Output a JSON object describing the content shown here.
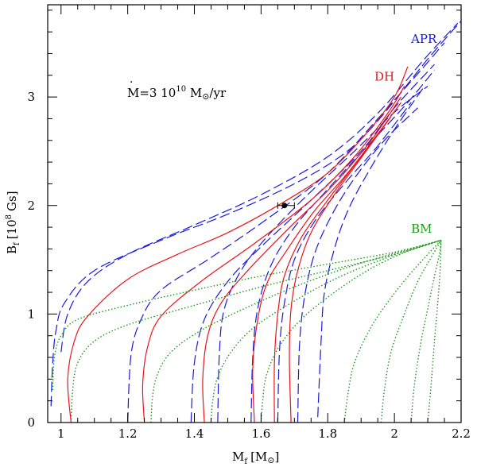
{
  "chart_data": {
    "type": "line",
    "title": "",
    "xlabel": "M_f [M⊙]",
    "xlabel_main": "M",
    "xlabel_sub": "f",
    "xlabel_unit": "[M",
    "xlabel_close": "]",
    "ylabel": "B_f [10^8 Gs]",
    "ylabel_main": "B",
    "ylabel_sub": "f",
    "ylabel_unit_open": "[10",
    "ylabel_unit_exp": "8",
    "ylabel_unit_close": "Gs]",
    "xlim": [
      0.96,
      2.2
    ],
    "ylim": [
      0,
      3.85
    ],
    "xticks": [
      1.0,
      1.2,
      1.4,
      1.6,
      1.8,
      2.0,
      2.2
    ],
    "xtick_labels": [
      "1",
      "1.2",
      "1.4",
      "1.6",
      "1.8",
      "2",
      "2.2"
    ],
    "yticks": [
      0,
      1,
      2,
      3
    ],
    "ytick_labels": [
      "0",
      "1",
      "2",
      "3"
    ],
    "annotation": {
      "prefix": "M",
      "mid": "=3 10",
      "exp": "10",
      "unit": " M",
      "suffix": "/yr"
    },
    "series_labels": [
      {
        "name": "APR",
        "color": "#1a1adb",
        "x": 2.05,
        "y": 3.5
      },
      {
        "name": "DH",
        "color": "#e8141b",
        "x": 1.94,
        "y": 3.15
      },
      {
        "name": "BM",
        "color": "#1a9a1a",
        "x": 2.05,
        "y": 1.75
      }
    ],
    "series": [
      {
        "name": "APR",
        "color": "#1a1adb",
        "style": "dashed",
        "curves": [
          [
            [
              0.97,
              0.15
            ],
            [
              0.975,
              0.55
            ],
            [
              0.985,
              0.85
            ],
            [
              1.01,
              1.1
            ],
            [
              1.1,
              1.4
            ],
            [
              1.3,
              1.68
            ],
            [
              1.5,
              1.92
            ],
            [
              1.7,
              2.2
            ],
            [
              1.85,
              2.48
            ],
            [
              1.95,
              2.78
            ],
            [
              2.1,
              3.35
            ],
            [
              2.2,
              3.7
            ]
          ],
          [
            [
              1.0,
              0.65
            ],
            [
              1.02,
              1.0
            ],
            [
              1.08,
              1.3
            ],
            [
              1.2,
              1.55
            ],
            [
              1.4,
              1.82
            ],
            [
              1.6,
              2.1
            ],
            [
              1.8,
              2.45
            ],
            [
              1.95,
              2.85
            ],
            [
              2.09,
              3.35
            ],
            [
              2.19,
              3.68
            ]
          ],
          [
            [
              1.2,
              0.0
            ],
            [
              1.21,
              0.62
            ],
            [
              1.24,
              0.95
            ],
            [
              1.3,
              1.22
            ],
            [
              1.45,
              1.52
            ],
            [
              1.62,
              1.88
            ],
            [
              1.8,
              2.3
            ],
            [
              1.95,
              2.8
            ],
            [
              2.08,
              3.25
            ],
            [
              2.15,
              3.5
            ]
          ],
          [
            [
              1.39,
              0.0
            ],
            [
              1.4,
              0.55
            ],
            [
              1.43,
              0.95
            ],
            [
              1.5,
              1.3
            ],
            [
              1.6,
              1.62
            ],
            [
              1.75,
              2.05
            ],
            [
              1.9,
              2.5
            ],
            [
              2.0,
              2.9
            ],
            [
              2.12,
              3.3
            ]
          ],
          [
            [
              1.47,
              0.0
            ],
            [
              1.475,
              0.65
            ],
            [
              1.49,
              1.05
            ],
            [
              1.54,
              1.4
            ],
            [
              1.62,
              1.72
            ],
            [
              1.74,
              2.1
            ],
            [
              1.88,
              2.5
            ],
            [
              2.0,
              2.86
            ],
            [
              2.1,
              3.1
            ]
          ],
          [
            [
              1.57,
              0.0
            ],
            [
              1.575,
              0.6
            ],
            [
              1.59,
              1.05
            ],
            [
              1.63,
              1.45
            ],
            [
              1.7,
              1.8
            ],
            [
              1.8,
              2.15
            ],
            [
              1.92,
              2.55
            ],
            [
              2.04,
              2.95
            ],
            [
              2.12,
              3.25
            ]
          ],
          [
            [
              1.65,
              0.0
            ],
            [
              1.655,
              0.65
            ],
            [
              1.67,
              1.1
            ],
            [
              1.7,
              1.5
            ],
            [
              1.76,
              1.85
            ],
            [
              1.85,
              2.2
            ],
            [
              1.95,
              2.55
            ],
            [
              2.05,
              2.95
            ]
          ],
          [
            [
              1.71,
              0.0
            ],
            [
              1.715,
              0.7
            ],
            [
              1.73,
              1.15
            ],
            [
              1.76,
              1.55
            ],
            [
              1.81,
              1.9
            ],
            [
              1.88,
              2.25
            ],
            [
              1.97,
              2.6
            ],
            [
              2.07,
              2.9
            ]
          ],
          [
            [
              1.77,
              0.05
            ],
            [
              1.78,
              0.75
            ],
            [
              1.79,
              1.2
            ],
            [
              1.82,
              1.6
            ],
            [
              1.86,
              1.95
            ],
            [
              1.92,
              2.3
            ],
            [
              2.0,
              2.7
            ],
            [
              2.09,
              3.1
            ]
          ]
        ]
      },
      {
        "name": "DH",
        "color": "#e8141b",
        "style": "solid",
        "curves": [
          [
            [
              1.03,
              0.0
            ],
            [
              1.02,
              0.4
            ],
            [
              1.04,
              0.75
            ],
            [
              1.08,
              0.98
            ],
            [
              1.2,
              1.32
            ],
            [
              1.35,
              1.55
            ],
            [
              1.5,
              1.75
            ],
            [
              1.65,
              2.0
            ],
            [
              1.8,
              2.3
            ],
            [
              1.92,
              2.68
            ],
            [
              2.0,
              3.0
            ],
            [
              2.04,
              3.28
            ]
          ],
          [
            [
              1.25,
              0.0
            ],
            [
              1.245,
              0.35
            ],
            [
              1.26,
              0.7
            ],
            [
              1.3,
              0.98
            ],
            [
              1.42,
              1.3
            ],
            [
              1.58,
              1.65
            ],
            [
              1.75,
              2.05
            ],
            [
              1.88,
              2.45
            ],
            [
              1.98,
              2.85
            ],
            [
              2.03,
              3.1
            ]
          ],
          [
            [
              1.43,
              0.0
            ],
            [
              1.425,
              0.4
            ],
            [
              1.44,
              0.8
            ],
            [
              1.48,
              1.1
            ],
            [
              1.56,
              1.4
            ],
            [
              1.68,
              1.78
            ],
            [
              1.82,
              2.2
            ],
            [
              1.93,
              2.6
            ],
            [
              2.02,
              3.0
            ]
          ],
          [
            [
              1.58,
              0.0
            ],
            [
              1.575,
              0.5
            ],
            [
              1.59,
              0.95
            ],
            [
              1.62,
              1.3
            ],
            [
              1.68,
              1.6
            ],
            [
              1.76,
              1.95
            ],
            [
              1.86,
              2.3
            ],
            [
              1.96,
              2.7
            ],
            [
              2.02,
              2.95
            ]
          ],
          [
            [
              1.64,
              0.0
            ],
            [
              1.64,
              0.55
            ],
            [
              1.65,
              1.0
            ],
            [
              1.67,
              1.35
            ],
            [
              1.72,
              1.7
            ],
            [
              1.8,
              2.05
            ],
            [
              1.9,
              2.45
            ],
            [
              1.98,
              2.78
            ]
          ],
          [
            [
              1.69,
              0.0
            ],
            [
              1.685,
              0.6
            ],
            [
              1.69,
              1.05
            ],
            [
              1.71,
              1.4
            ],
            [
              1.75,
              1.75
            ],
            [
              1.82,
              2.1
            ],
            [
              1.91,
              2.48
            ],
            [
              1.99,
              2.82
            ]
          ]
        ]
      },
      {
        "name": "BM",
        "color": "#1a9a1a",
        "style": "dotted",
        "curves": [
          [
            [
              0.975,
              0.3
            ],
            [
              0.98,
              0.6
            ],
            [
              1.0,
              0.8
            ],
            [
              1.05,
              0.95
            ],
            [
              1.2,
              1.08
            ],
            [
              1.4,
              1.22
            ],
            [
              1.6,
              1.35
            ],
            [
              1.8,
              1.46
            ],
            [
              2.0,
              1.57
            ],
            [
              2.14,
              1.68
            ]
          ],
          [
            [
              1.03,
              0.0
            ],
            [
              1.035,
              0.3
            ],
            [
              1.05,
              0.55
            ],
            [
              1.1,
              0.75
            ],
            [
              1.2,
              0.9
            ],
            [
              1.4,
              1.08
            ],
            [
              1.6,
              1.25
            ],
            [
              1.8,
              1.4
            ],
            [
              2.0,
              1.55
            ],
            [
              2.14,
              1.68
            ]
          ],
          [
            [
              1.27,
              0.0
            ],
            [
              1.275,
              0.25
            ],
            [
              1.29,
              0.45
            ],
            [
              1.33,
              0.65
            ],
            [
              1.42,
              0.85
            ],
            [
              1.55,
              1.05
            ],
            [
              1.7,
              1.25
            ],
            [
              1.86,
              1.43
            ],
            [
              2.0,
              1.56
            ],
            [
              2.14,
              1.68
            ]
          ],
          [
            [
              1.45,
              0.0
            ],
            [
              1.455,
              0.2
            ],
            [
              1.47,
              0.42
            ],
            [
              1.51,
              0.65
            ],
            [
              1.58,
              0.88
            ],
            [
              1.7,
              1.12
            ],
            [
              1.82,
              1.32
            ],
            [
              1.96,
              1.5
            ],
            [
              2.08,
              1.62
            ],
            [
              2.14,
              1.68
            ]
          ],
          [
            [
              1.6,
              0.0
            ],
            [
              1.605,
              0.2
            ],
            [
              1.615,
              0.42
            ],
            [
              1.65,
              0.68
            ],
            [
              1.72,
              0.95
            ],
            [
              1.82,
              1.2
            ],
            [
              1.93,
              1.42
            ],
            [
              2.04,
              1.58
            ],
            [
              2.14,
              1.68
            ]
          ],
          [
            [
              1.85,
              0.0
            ],
            [
              1.86,
              0.25
            ],
            [
              1.88,
              0.55
            ],
            [
              1.93,
              0.88
            ],
            [
              1.99,
              1.15
            ],
            [
              2.05,
              1.38
            ],
            [
              2.1,
              1.55
            ],
            [
              2.14,
              1.68
            ]
          ],
          [
            [
              1.96,
              0.0
            ],
            [
              1.97,
              0.3
            ],
            [
              1.99,
              0.65
            ],
            [
              2.03,
              1.0
            ],
            [
              2.07,
              1.3
            ],
            [
              2.11,
              1.52
            ],
            [
              2.14,
              1.68
            ]
          ],
          [
            [
              2.05,
              0.0
            ],
            [
              2.06,
              0.35
            ],
            [
              2.08,
              0.75
            ],
            [
              2.1,
              1.05
            ],
            [
              2.12,
              1.35
            ],
            [
              2.135,
              1.55
            ],
            [
              2.14,
              1.68
            ]
          ],
          [
            [
              2.1,
              0.0
            ],
            [
              2.11,
              0.35
            ],
            [
              2.12,
              0.75
            ],
            [
              2.13,
              1.1
            ],
            [
              2.137,
              1.4
            ],
            [
              2.14,
              1.68
            ]
          ]
        ]
      }
    ],
    "data_point": {
      "x": 1.67,
      "y": 2.0,
      "xerr_low": 0.02,
      "xerr_high": 0.03
    }
  }
}
